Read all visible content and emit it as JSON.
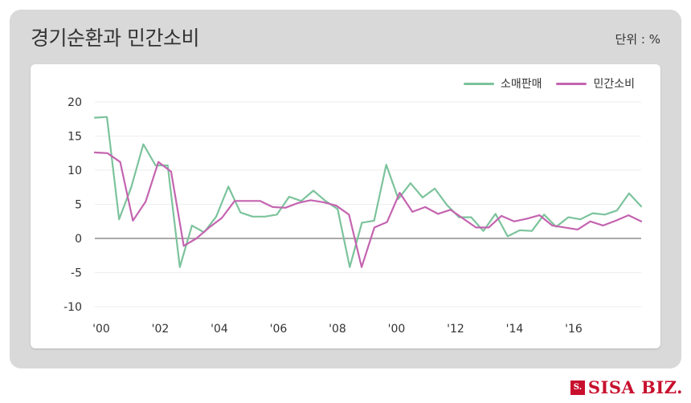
{
  "header": {
    "title": "경기순환과 민간소비",
    "unit": "단위 : %"
  },
  "brand": {
    "mark": "S.",
    "name": "SISA BIZ."
  },
  "colors": {
    "retail": "#7cc39c",
    "consumption": "#c464b0",
    "zero": "#aaaaaa",
    "grid": "#eeeeee"
  },
  "chart_data": {
    "type": "line",
    "title": "경기순환과 민간소비",
    "xlabel": "",
    "ylabel": "",
    "ylim": [
      -10,
      20
    ],
    "yticks": [
      20,
      15,
      10,
      5,
      0,
      -5,
      -10
    ],
    "x_tick_labels": [
      "'00",
      "'02",
      "'04",
      "'06",
      "'08",
      "'00",
      "'12",
      "'14",
      "'16"
    ],
    "grid": true,
    "legend_position": "top-right",
    "series": [
      {
        "name": "소매판매",
        "values": [
          17.7,
          17.8,
          2.8,
          7.5,
          13.8,
          10.7,
          10.7,
          -4.2,
          1.9,
          0.9,
          3.2,
          7.6,
          3.8,
          3.2,
          3.2,
          3.5,
          6.1,
          5.5,
          7.0,
          5.5,
          4.3,
          -4.2,
          2.3,
          2.6,
          10.8,
          5.8,
          8.1,
          6.0,
          7.3,
          4.9,
          3.1,
          3.1,
          1.1,
          3.6,
          0.3,
          1.2,
          1.1,
          3.5,
          1.7,
          3.1,
          2.8,
          3.7,
          3.5,
          4.1,
          6.6,
          4.7
        ]
      },
      {
        "name": "민간소비",
        "values": [
          12.6,
          12.5,
          11.2,
          2.6,
          5.4,
          11.2,
          9.8,
          -1.1,
          0.0,
          1.6,
          3.0,
          5.5,
          5.5,
          5.5,
          4.6,
          4.5,
          5.2,
          5.6,
          5.3,
          4.8,
          3.5,
          -4.2,
          1.6,
          2.4,
          6.7,
          3.9,
          4.6,
          3.6,
          4.2,
          2.9,
          1.6,
          1.6,
          3.3,
          2.5,
          2.9,
          3.4,
          1.9,
          1.6,
          1.3,
          2.5,
          1.9,
          2.6,
          3.4,
          2.5
        ]
      }
    ]
  }
}
